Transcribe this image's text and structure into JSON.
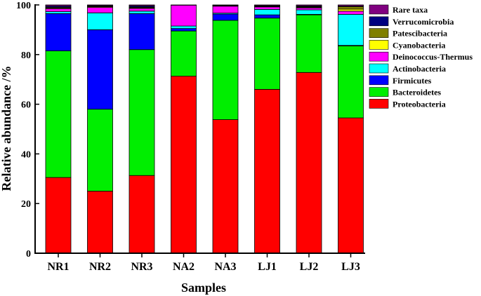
{
  "chart_data": {
    "type": "bar",
    "stacked": true,
    "title": "",
    "xlabel": "Samples",
    "ylabel": "Relative abundance /%",
    "ylim": [
      0,
      100
    ],
    "yticks": [
      "0",
      "20",
      "40",
      "60",
      "80",
      "100"
    ],
    "categories": [
      "NR1",
      "NR2",
      "NR3",
      "NA2",
      "NA3",
      "LJ1",
      "LJ2",
      "LJ3"
    ],
    "legend_position": "right",
    "series": [
      {
        "name": "Proteobacteria",
        "color": "#ff0000",
        "values": [
          30.5,
          25,
          31.3,
          71.3,
          53.8,
          66,
          72.8,
          54.5
        ]
      },
      {
        "name": "Bacteroidetes",
        "color": "#00ee00",
        "values": [
          51,
          33,
          50.7,
          18.2,
          40,
          28.7,
          23.2,
          29
        ]
      },
      {
        "name": "Firmicutes",
        "color": "#0000ff",
        "values": [
          15,
          32,
          14.5,
          1,
          2.5,
          1.3,
          0.2,
          0.2
        ]
      },
      {
        "name": "Actinobacteria",
        "color": "#00ffff",
        "values": [
          0.8,
          6.8,
          1,
          1,
          0.4,
          2.2,
          1.8,
          12.5
        ]
      },
      {
        "name": "Deinococcus-Thermus",
        "color": "#ff00ff",
        "values": [
          1.2,
          2.2,
          1.1,
          8.4,
          2.8,
          1,
          0.8,
          1.3
        ]
      },
      {
        "name": "Cyanobacteria",
        "color": "#ffff00",
        "values": [
          0.3,
          0.3,
          0.3,
          0,
          0.2,
          0.2,
          0.2,
          0.8
        ]
      },
      {
        "name": "Patescibacteria",
        "color": "#808000",
        "values": [
          0.2,
          0.2,
          0.2,
          0,
          0.1,
          0.1,
          0.3,
          1
        ]
      },
      {
        "name": "Verrucomicrobia",
        "color": "#000080",
        "values": [
          0.5,
          0.2,
          0.5,
          0,
          0.1,
          0.2,
          0.3,
          0.2
        ]
      },
      {
        "name": "Rare taxa",
        "color": "#800080",
        "values": [
          0.5,
          0.3,
          0.4,
          0.1,
          0.1,
          0.3,
          0.4,
          0.5
        ]
      }
    ]
  }
}
